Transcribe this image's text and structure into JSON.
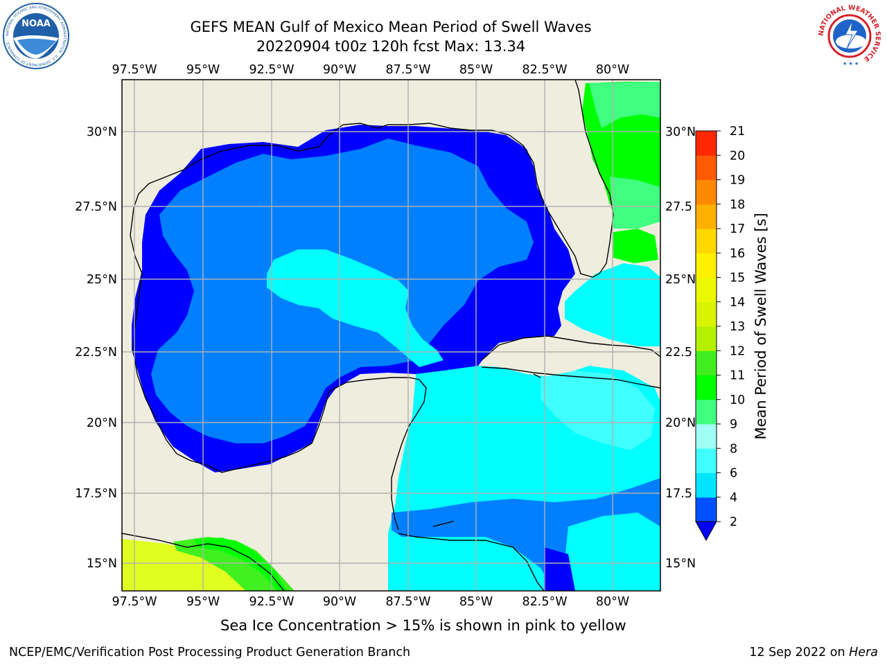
{
  "header": {
    "title_line1": "GEFS MEAN Gulf of Mexico Mean Period of Swell Waves",
    "title_line2": "20220904 t00z 120h fcst   Max: 13.34"
  },
  "logos": {
    "left": {
      "text": "NOAA",
      "ring_text": "NATIONAL OCEANIC AND ATMOSPHERIC ADMINISTRATION · U.S. DEPARTMENT OF COMMERCE",
      "color": "#1f5fa8"
    },
    "right": {
      "ring_text": "NATIONAL WEATHER SERVICE",
      "color": "#d4202a"
    }
  },
  "map": {
    "lon_labels": [
      "97.5°W",
      "95°W",
      "92.5°W",
      "90°W",
      "87.5°W",
      "85°W",
      "82.5°W",
      "80°W"
    ],
    "lat_labels_left": [
      "30°N",
      "27.5°N",
      "25°N",
      "22.5°N",
      "20°N",
      "17.5°N",
      "15°N"
    ],
    "lat_labels_right": [
      "30°N",
      "27.5",
      "25°N",
      "22.5",
      "20°N",
      "17.5",
      "15°N"
    ],
    "colors": {
      "land": "#eeedde",
      "deep_blue": "#0000ff",
      "mid_blue": "#0080ff",
      "cyan": "#00ffff",
      "light_cyan": "#40ffff",
      "green": "#00ff00",
      "light_green": "#40ff80",
      "yellow_green": "#ccff00",
      "yellow": "#e6ff00",
      "grid": "#b0b0b0"
    }
  },
  "colorbar": {
    "label": "Mean Period of Swell Waves [s]",
    "ticks": [
      "2",
      "4",
      "6",
      "8",
      "9",
      "10",
      "11",
      "12",
      "13",
      "14",
      "15",
      "16",
      "17",
      "18",
      "19",
      "20",
      "21"
    ],
    "colors": [
      "#0050ff",
      "#00e4ff",
      "#40ffff",
      "#a0fff4",
      "#40ff80",
      "#00ff00",
      "#40ee20",
      "#b4f000",
      "#d8f400",
      "#ecf800",
      "#fff000",
      "#ffd800",
      "#ffb000",
      "#ff8800",
      "#ff5a00",
      "#ff2800"
    ],
    "extend_color": "#0000ff"
  },
  "captions": {
    "sea_ice": "Sea Ice Concentration > 15% is shown in pink to yellow",
    "footer_left": "NCEP/EMC/Verification Post Processing Product Generation Branch",
    "footer_right_prefix": "12 Sep 2022 on ",
    "footer_right_host": "Hera"
  }
}
